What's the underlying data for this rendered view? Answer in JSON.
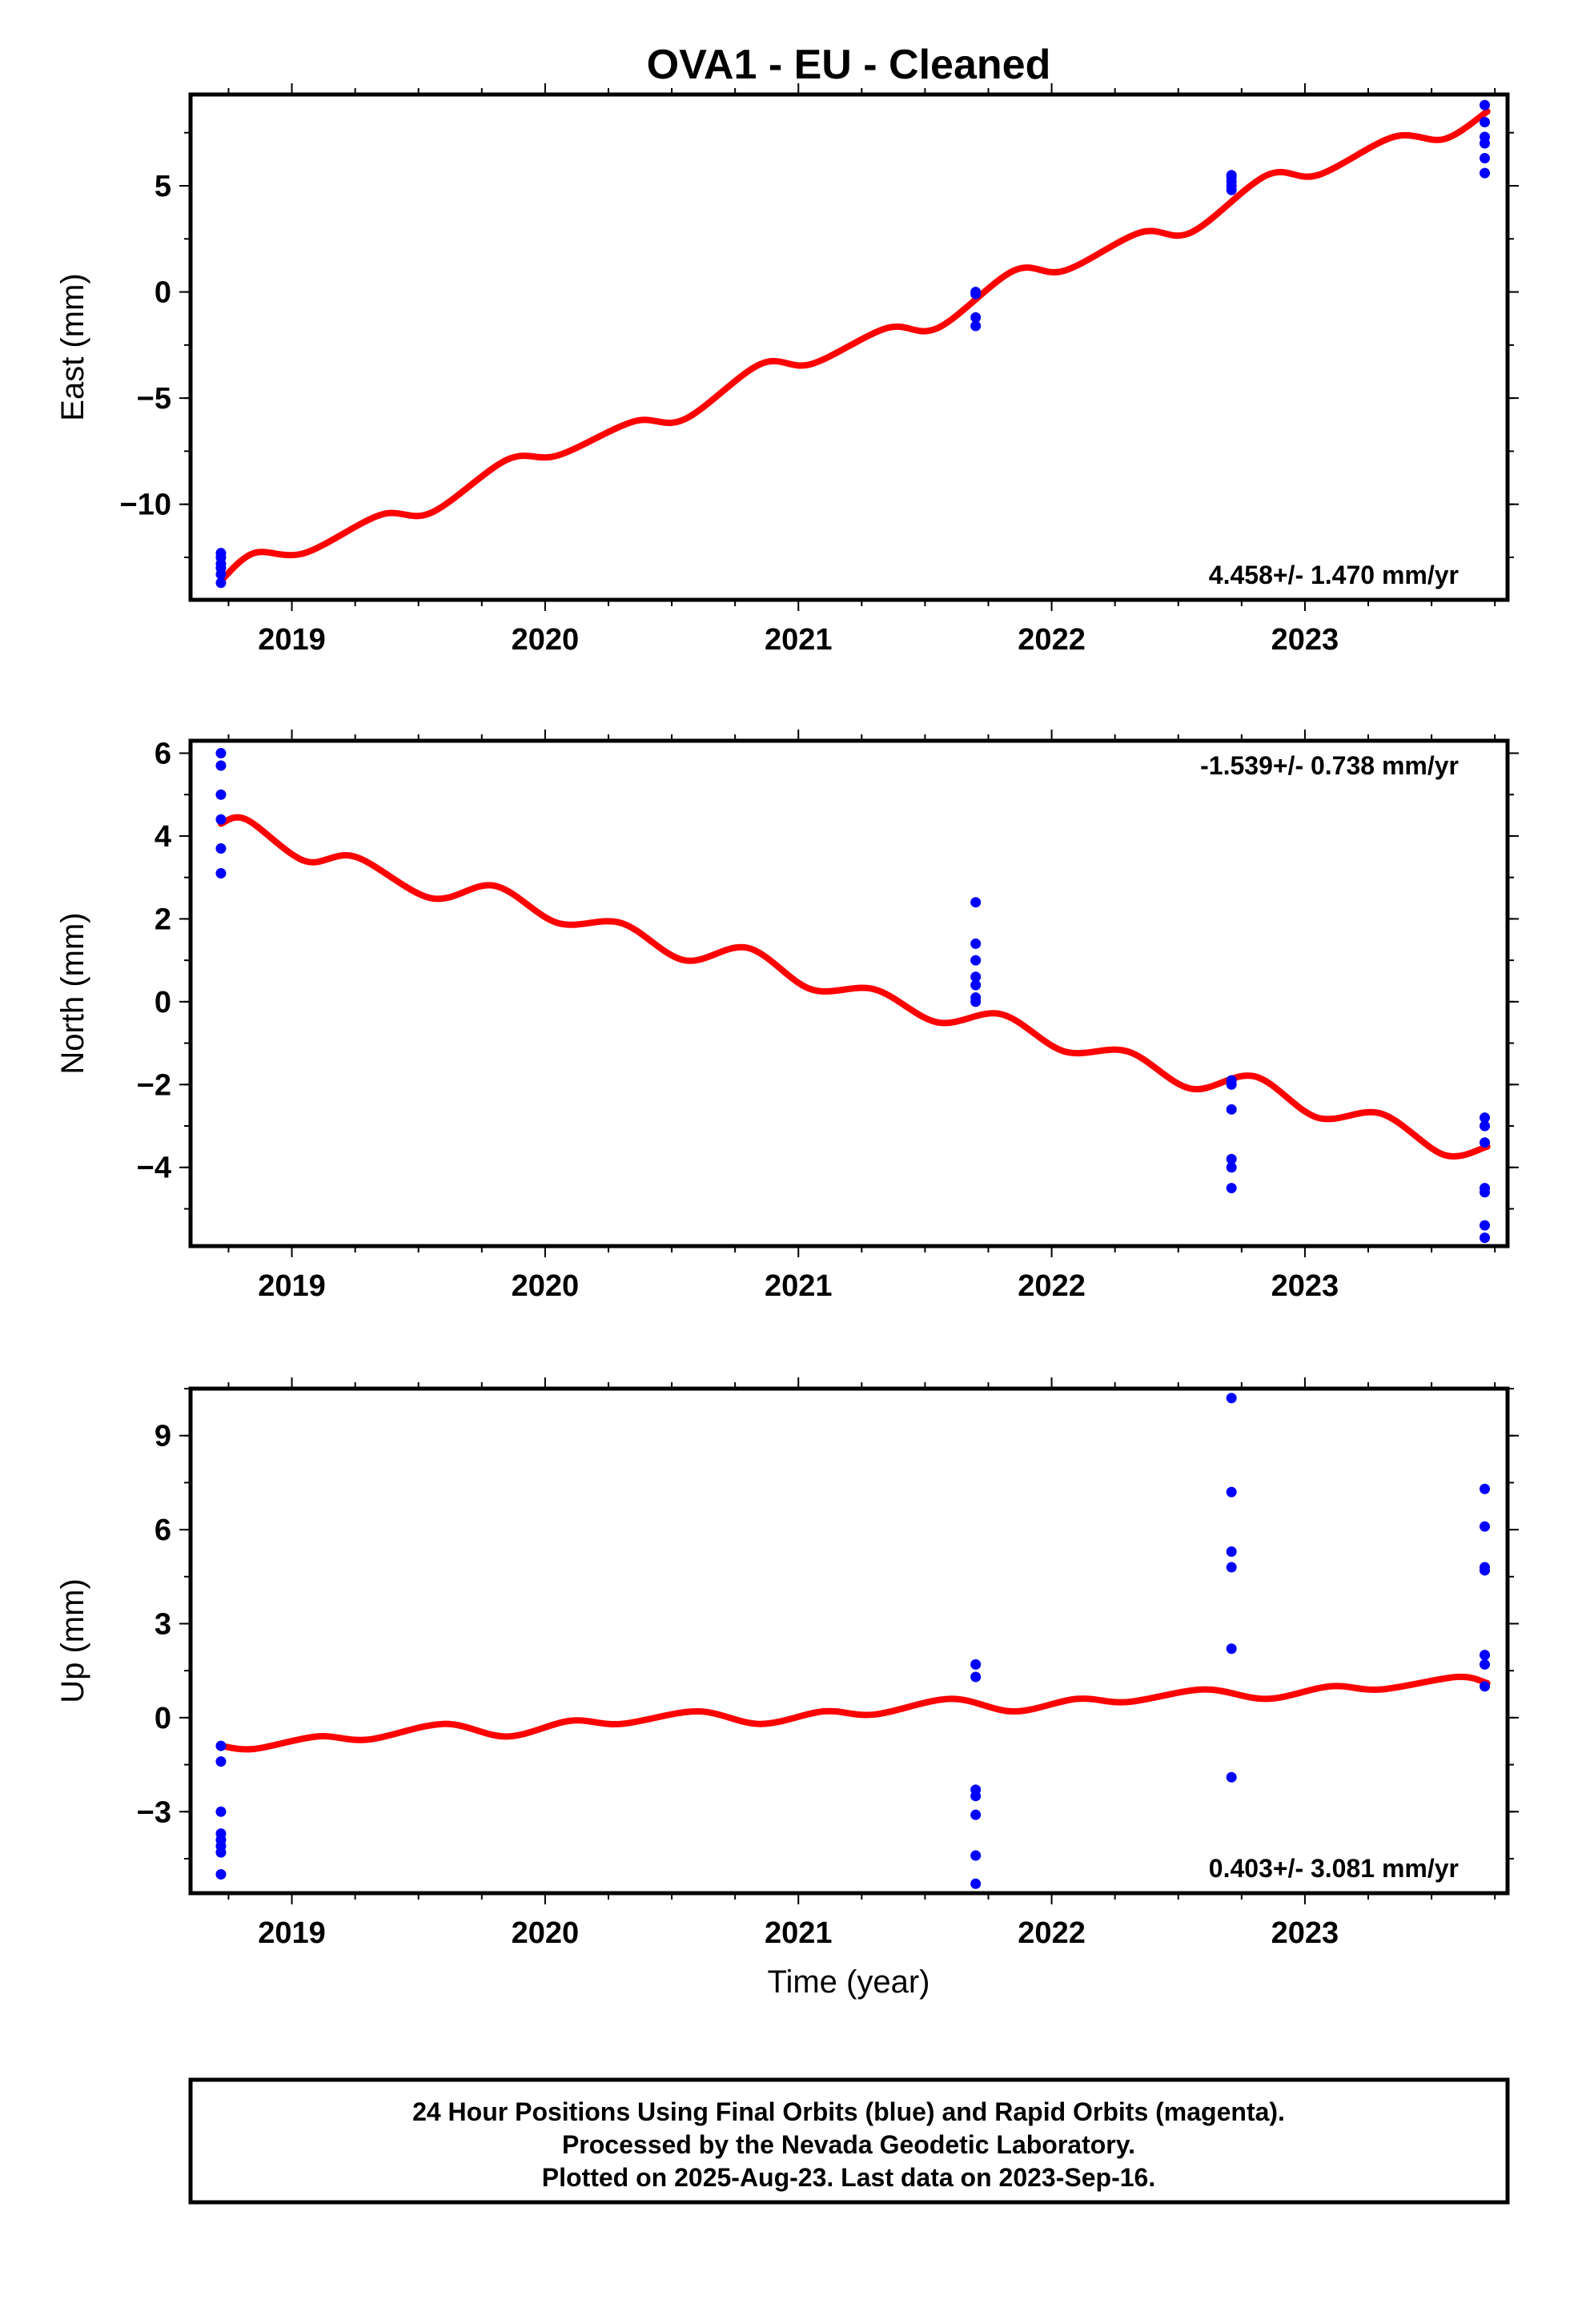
{
  "chart_data": {
    "type": "scatter",
    "title": "OVA1  - EU - Cleaned",
    "xlabel": "Time (year)",
    "xlim": [
      2018.6,
      2023.8
    ],
    "xticks": [
      "2019",
      "2020",
      "2021",
      "2022",
      "2023"
    ],
    "colors": {
      "points": "#0000ff",
      "fit": "#ff0000",
      "frame": "#000000"
    },
    "panels": [
      {
        "id": "east",
        "ylabel": "East (mm)",
        "ylim": [
          -14.5,
          9.3
        ],
        "yticks": [
          "5",
          "0",
          "−5",
          "−10"
        ],
        "rate_text": "4.458+/- 1.470 mm/yr",
        "rate_position": "bottom-right",
        "fit": {
          "x": [
            2018.72,
            2018.85,
            2019.05,
            2019.35,
            2019.55,
            2019.85,
            2020.05,
            2020.35,
            2020.55,
            2020.85,
            2021.05,
            2021.35,
            2021.55,
            2021.85,
            2022.05,
            2022.35,
            2022.55,
            2022.85,
            2023.05,
            2023.35,
            2023.55,
            2023.72
          ],
          "y": [
            -13.6,
            -12.3,
            -12.3,
            -10.5,
            -10.4,
            -7.9,
            -7.7,
            -6.1,
            -6.0,
            -3.4,
            -3.4,
            -1.7,
            -1.7,
            1.0,
            1.0,
            2.8,
            2.8,
            5.5,
            5.5,
            7.3,
            7.2,
            8.5
          ]
        },
        "points": [
          {
            "x": 2018.72,
            "y": [
              -13.7,
              -13.3,
              -13.0,
              -12.8,
              -12.5,
              -12.3
            ]
          },
          {
            "x": 2021.7,
            "y": [
              -1.6,
              -1.2,
              -0.1,
              0.0
            ]
          },
          {
            "x": 2022.71,
            "y": [
              4.8,
              5.0,
              5.2,
              5.4,
              5.5
            ]
          },
          {
            "x": 2023.71,
            "y": [
              5.6,
              6.3,
              7.0,
              7.3,
              8.0,
              8.8
            ]
          }
        ]
      },
      {
        "id": "north",
        "ylabel": "North (mm)",
        "ylim": [
          -5.9,
          6.3
        ],
        "yticks": [
          "6",
          "4",
          "2",
          "0",
          "−2",
          "−4"
        ],
        "rate_text": "-1.539+/- 0.738 mm/yr",
        "rate_position": "top-right",
        "fit": {
          "x": [
            2018.72,
            2018.82,
            2019.05,
            2019.25,
            2019.55,
            2019.8,
            2020.05,
            2020.3,
            2020.55,
            2020.8,
            2021.05,
            2021.3,
            2021.55,
            2021.8,
            2022.05,
            2022.3,
            2022.55,
            2022.8,
            2023.05,
            2023.3,
            2023.55,
            2023.72
          ],
          "y": [
            4.3,
            4.4,
            3.4,
            3.5,
            2.5,
            2.8,
            1.9,
            1.9,
            1.0,
            1.3,
            0.3,
            0.3,
            -0.5,
            -0.3,
            -1.2,
            -1.2,
            -2.1,
            -1.8,
            -2.8,
            -2.7,
            -3.7,
            -3.5
          ]
        },
        "points": [
          {
            "x": 2018.72,
            "y": [
              6.0,
              5.7,
              5.0,
              4.4,
              3.7,
              3.1
            ]
          },
          {
            "x": 2021.7,
            "y": [
              2.4,
              1.4,
              1.0,
              0.6,
              0.4,
              0.1,
              0.0
            ]
          },
          {
            "x": 2022.71,
            "y": [
              -1.9,
              -2.0,
              -2.6,
              -3.8,
              -4.0,
              -4.5
            ]
          },
          {
            "x": 2023.71,
            "y": [
              -2.8,
              -3.0,
              -3.4,
              -4.5,
              -4.6,
              -5.4,
              -5.7
            ]
          }
        ]
      },
      {
        "id": "up",
        "ylabel": "Up (mm)",
        "ylim": [
          -5.6,
          10.5
        ],
        "yticks": [
          "9",
          "6",
          "3",
          "0",
          "−3"
        ],
        "rate_text": "0.403+/- 3.081 mm/yr",
        "rate_position": "bottom-right",
        "fit": {
          "x": [
            2018.72,
            2018.85,
            2019.1,
            2019.3,
            2019.6,
            2019.85,
            2020.1,
            2020.3,
            2020.6,
            2020.85,
            2021.1,
            2021.3,
            2021.6,
            2021.85,
            2022.1,
            2022.3,
            2022.6,
            2022.85,
            2023.1,
            2023.3,
            2023.6,
            2023.72
          ],
          "y": [
            -0.9,
            -1.0,
            -0.6,
            -0.7,
            -0.2,
            -0.6,
            -0.1,
            -0.2,
            0.2,
            -0.2,
            0.2,
            0.1,
            0.6,
            0.2,
            0.6,
            0.5,
            0.9,
            0.6,
            1.0,
            0.9,
            1.3,
            1.1
          ]
        },
        "points": [
          {
            "x": 2018.72,
            "y": [
              -0.9,
              -1.4,
              -3.0,
              -3.7,
              -3.9,
              -4.1,
              -4.3,
              -5.0
            ]
          },
          {
            "x": 2021.7,
            "y": [
              1.7,
              1.3,
              -2.3,
              -2.5,
              -3.1,
              -4.4,
              -5.3
            ]
          },
          {
            "x": 2022.71,
            "y": [
              10.2,
              7.2,
              5.3,
              4.8,
              2.2,
              -1.9
            ]
          },
          {
            "x": 2023.71,
            "y": [
              7.3,
              6.1,
              4.8,
              4.7,
              2.0,
              1.7,
              1.0
            ]
          }
        ]
      }
    ]
  },
  "caption": {
    "line1": "24 Hour Positions Using Final Orbits (blue) and Rapid Orbits (magenta).",
    "line2": "Processed by the Nevada Geodetic Laboratory.",
    "line3": "Plotted on 2025-Aug-23. Last data on 2023-Sep-16."
  }
}
